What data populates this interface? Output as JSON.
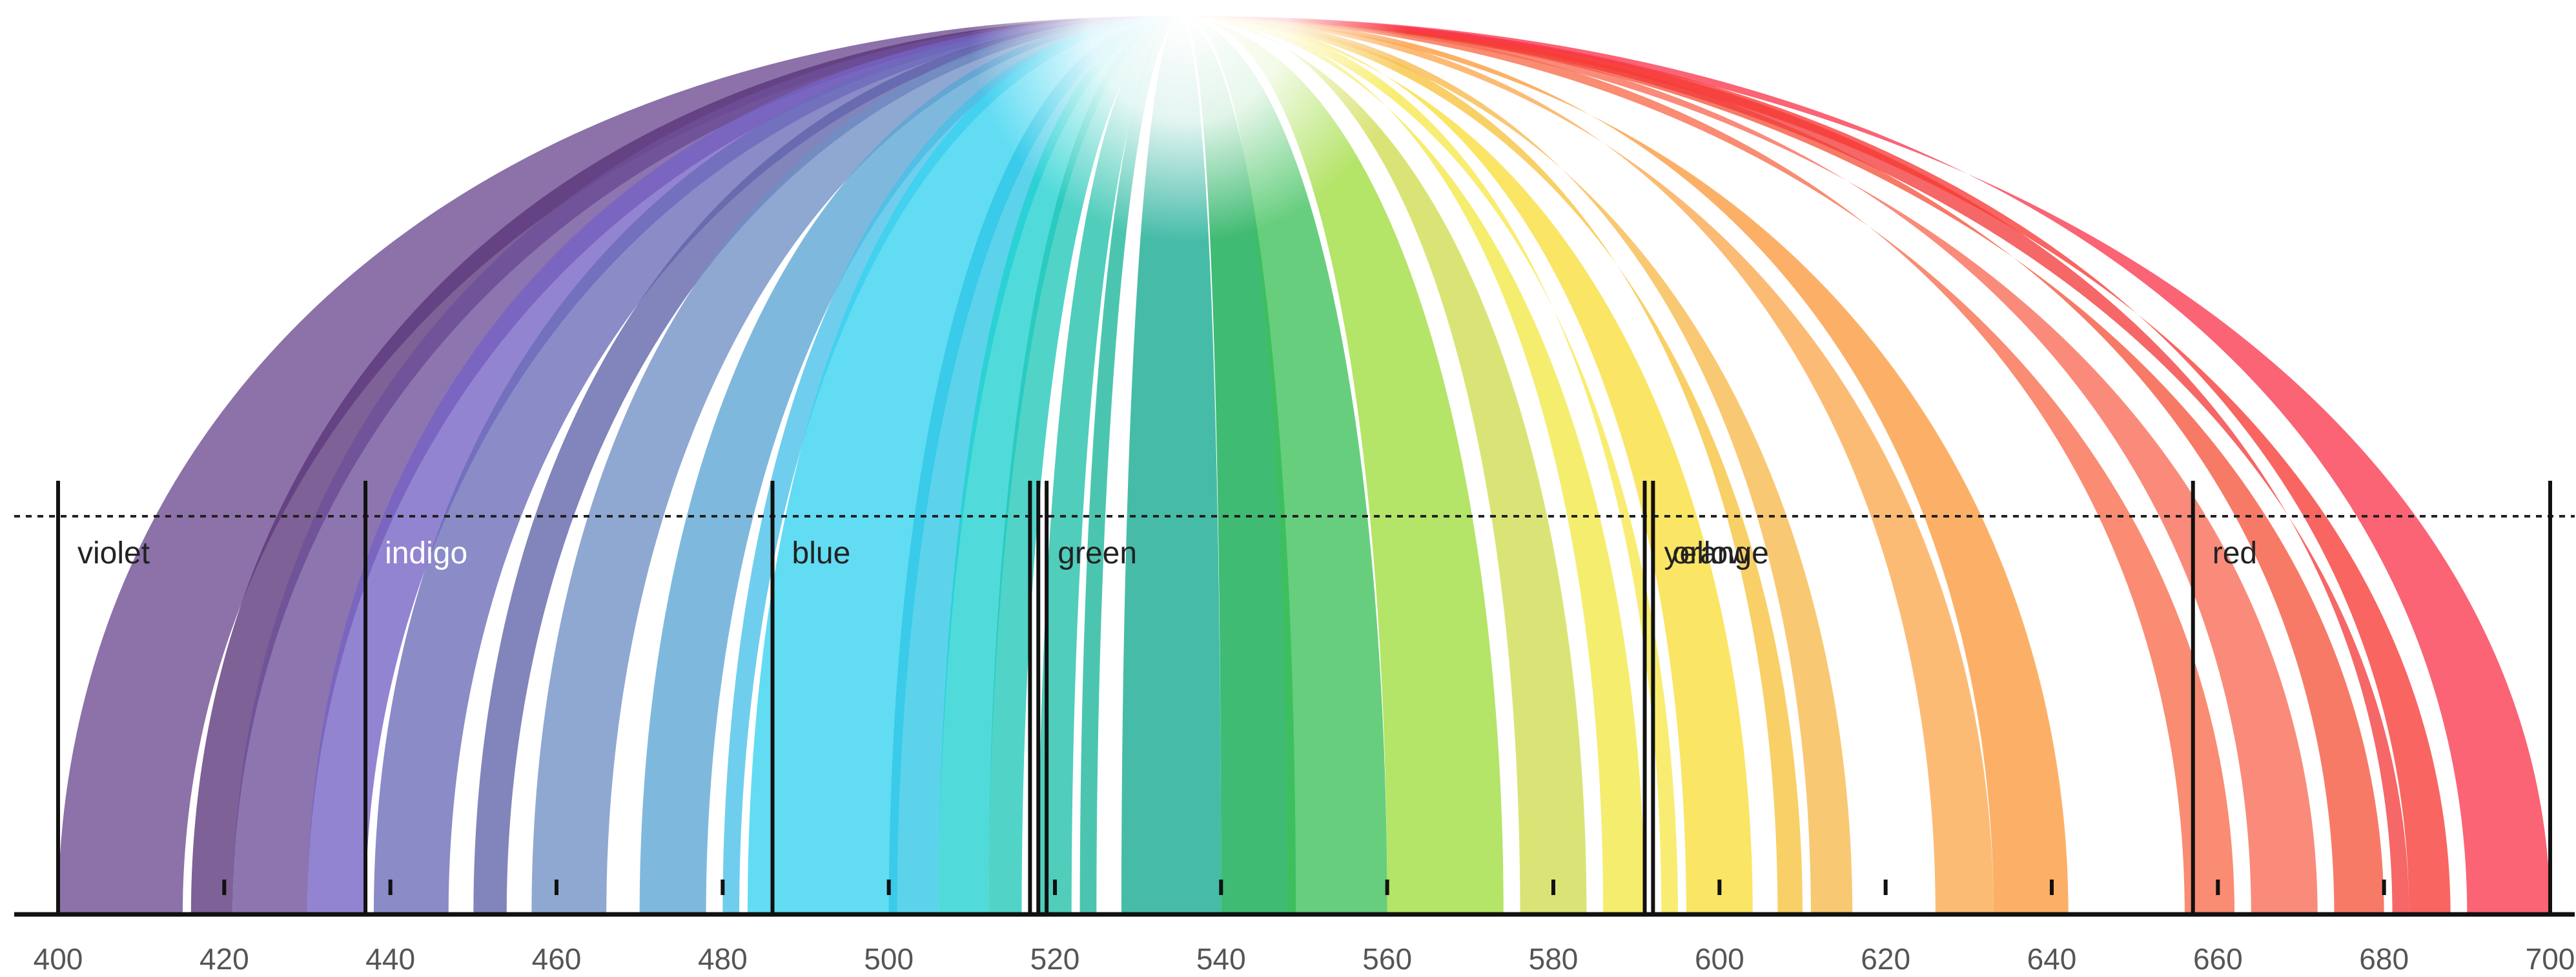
{
  "chart_data": {
    "type": "area",
    "xlim": [
      400,
      700
    ],
    "x_ticks": [
      "400",
      "420",
      "440",
      "460",
      "480",
      "500",
      "520",
      "540",
      "560",
      "580",
      "600",
      "620",
      "640",
      "660",
      "680",
      "700"
    ],
    "arcs": [
      {
        "from": 400,
        "to": 415,
        "color": "#6b4a8f"
      },
      {
        "from": 416,
        "to": 421,
        "color": "#5a3578"
      },
      {
        "from": 421,
        "to": 430,
        "color": "#6d4f9a"
      },
      {
        "from": 430,
        "to": 437,
        "color": "#7462c4"
      },
      {
        "from": 438,
        "to": 447,
        "color": "#6a6ab8"
      },
      {
        "from": 450,
        "to": 454,
        "color": "#5f63a8"
      },
      {
        "from": 457,
        "to": 466,
        "color": "#6f8fc5"
      },
      {
        "from": 470,
        "to": 478,
        "color": "#5aa5d4"
      },
      {
        "from": 480,
        "to": 482,
        "color": "#46c0e8"
      },
      {
        "from": 483,
        "to": 501,
        "color": "#36d2f0"
      },
      {
        "from": 500,
        "to": 506,
        "color": "#2ec6e6"
      },
      {
        "from": 506,
        "to": 512,
        "color": "#1fd1cf"
      },
      {
        "from": 512,
        "to": 516,
        "color": "#20c6b8"
      },
      {
        "from": 518,
        "to": 522,
        "color": "#1fbfa8"
      },
      {
        "from": 523,
        "to": 525,
        "color": "#19b59a"
      },
      {
        "from": 528,
        "to": 540,
        "color": "#12a98f"
      },
      {
        "from": 540,
        "to": 549,
        "color": "#0aa84c"
      },
      {
        "from": 548,
        "to": 560,
        "color": "#3cc05a"
      },
      {
        "from": 560,
        "to": 574,
        "color": "#9fdc3e"
      },
      {
        "from": 576,
        "to": 584,
        "color": "#cfdc50"
      },
      {
        "from": 586,
        "to": 591,
        "color": "#f2e845"
      },
      {
        "from": 593,
        "to": 595,
        "color": "#f6e84a"
      },
      {
        "from": 596,
        "to": 604,
        "color": "#f8de3a"
      },
      {
        "from": 607,
        "to": 610,
        "color": "#f6c33c"
      },
      {
        "from": 611,
        "to": 616,
        "color": "#f7b84a"
      },
      {
        "from": 626,
        "to": 633,
        "color": "#fba84e"
      },
      {
        "from": 633,
        "to": 642,
        "color": "#fb9a3c"
      },
      {
        "from": 656,
        "to": 662,
        "color": "#f76c4a"
      },
      {
        "from": 664,
        "to": 672,
        "color": "#f96a55"
      },
      {
        "from": 674,
        "to": 680,
        "color": "#f5543c"
      },
      {
        "from": 681,
        "to": 683,
        "color": "#f43c3c"
      },
      {
        "from": 683,
        "to": 688,
        "color": "#f73a35"
      },
      {
        "from": 690,
        "to": 700,
        "color": "#f8384e"
      }
    ],
    "bands": [
      {
        "label": "violet",
        "from": 400,
        "to": 437,
        "label_color": "#222222"
      },
      {
        "label": "indigo",
        "from": 437,
        "to": 486,
        "label_color": "#ffffff"
      },
      {
        "label": "blue",
        "from": 486,
        "to": 517,
        "label_color": "#222222"
      },
      {
        "label": "green",
        "from": 518,
        "to": 591,
        "label_color": "#222222"
      },
      {
        "label": "yellow",
        "from": 591,
        "to": 592,
        "label_color": "#222222"
      },
      {
        "label": "orange",
        "from": 592,
        "to": 657,
        "label_color": "#222222"
      },
      {
        "label": "red",
        "from": 657,
        "to": 700,
        "label_color": "#222222"
      }
    ],
    "boundaries": [
      400,
      437,
      486,
      517,
      518,
      519,
      591,
      592,
      657,
      700
    ],
    "grid": false,
    "reference_line": "dotted horizontal"
  }
}
